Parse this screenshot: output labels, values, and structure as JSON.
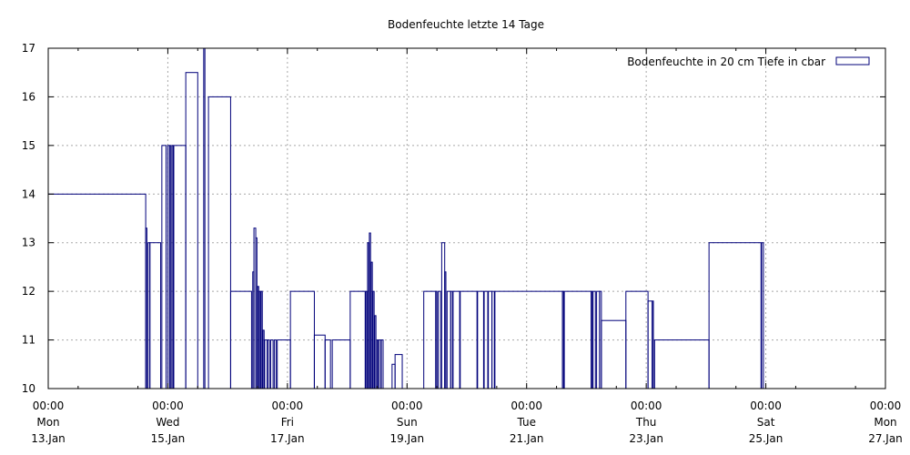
{
  "chart_data": {
    "type": "bar",
    "title": "Bodenfeuchte letzte 14 Tage",
    "xlabel": "",
    "ylabel": "",
    "ylim": [
      10,
      17
    ],
    "yticks": [
      "10",
      "11",
      "12",
      "13",
      "14",
      "15",
      "16",
      "17"
    ],
    "xlim_days": [
      0,
      14
    ],
    "xticks": [
      {
        "day": 0,
        "time": "00:00",
        "weekday": "Mon",
        "date": "13.Jan"
      },
      {
        "day": 2,
        "time": "00:00",
        "weekday": "Wed",
        "date": "15.Jan"
      },
      {
        "day": 4,
        "time": "00:00",
        "weekday": "Fri",
        "date": "17.Jan"
      },
      {
        "day": 6,
        "time": "00:00",
        "weekday": "Sun",
        "date": "19.Jan"
      },
      {
        "day": 8,
        "time": "00:00",
        "weekday": "Tue",
        "date": "21.Jan"
      },
      {
        "day": 10,
        "time": "00:00",
        "weekday": "Thu",
        "date": "23.Jan"
      },
      {
        "day": 12,
        "time": "00:00",
        "weekday": "Sat",
        "date": "25.Jan"
      },
      {
        "day": 14,
        "time": "00:00",
        "weekday": "Mon",
        "date": "27.Jan"
      }
    ],
    "grid": true,
    "legend": "top-right",
    "series": [
      {
        "name": "Bodenfeuchte in 20 cm Tiefe in cbar",
        "color": "#00007a",
        "bars": [
          [
            0.0,
            1.63,
            14.0
          ],
          [
            1.63,
            1.65,
            13.3
          ],
          [
            1.67,
            1.7,
            13.0
          ],
          [
            1.7,
            1.88,
            13.0
          ],
          [
            1.9,
            1.97,
            15.0
          ],
          [
            2.0,
            2.03,
            15.0
          ],
          [
            2.03,
            2.05,
            15.0
          ],
          [
            2.07,
            2.09,
            15.0
          ],
          [
            2.1,
            2.3,
            15.0
          ],
          [
            2.3,
            2.5,
            16.5
          ],
          [
            2.6,
            2.62,
            17.0
          ],
          [
            2.68,
            3.05,
            16.0
          ],
          [
            3.05,
            3.4,
            12.0
          ],
          [
            3.42,
            3.44,
            12.4
          ],
          [
            3.44,
            3.47,
            13.3
          ],
          [
            3.47,
            3.49,
            13.1
          ],
          [
            3.5,
            3.52,
            12.1
          ],
          [
            3.53,
            3.55,
            12.0
          ],
          [
            3.56,
            3.58,
            12.0
          ],
          [
            3.59,
            3.61,
            11.2
          ],
          [
            3.62,
            3.66,
            11.0
          ],
          [
            3.67,
            3.7,
            11.0
          ],
          [
            3.72,
            3.76,
            11.0
          ],
          [
            3.78,
            3.81,
            11.0
          ],
          [
            3.83,
            4.05,
            11.0
          ],
          [
            4.05,
            4.45,
            12.0
          ],
          [
            4.45,
            4.63,
            11.1
          ],
          [
            4.63,
            4.72,
            11.0
          ],
          [
            4.75,
            5.05,
            11.0
          ],
          [
            5.05,
            5.3,
            12.0
          ],
          [
            5.31,
            5.33,
            12.0
          ],
          [
            5.34,
            5.36,
            13.0
          ],
          [
            5.37,
            5.39,
            13.2
          ],
          [
            5.4,
            5.42,
            12.6
          ],
          [
            5.43,
            5.45,
            12.0
          ],
          [
            5.46,
            5.48,
            11.5
          ],
          [
            5.5,
            5.52,
            11.0
          ],
          [
            5.53,
            5.56,
            11.0
          ],
          [
            5.57,
            5.6,
            11.0
          ],
          [
            5.75,
            5.8,
            10.5
          ],
          [
            5.8,
            5.92,
            10.7
          ],
          [
            6.28,
            6.48,
            12.0
          ],
          [
            6.48,
            6.5,
            12.0
          ],
          [
            6.52,
            6.56,
            12.0
          ],
          [
            6.58,
            6.63,
            13.0
          ],
          [
            6.63,
            6.65,
            12.4
          ],
          [
            6.67,
            6.73,
            12.0
          ],
          [
            6.73,
            6.76,
            12.0
          ],
          [
            6.77,
            6.88,
            12.0
          ],
          [
            6.89,
            7.17,
            12.0
          ],
          [
            7.18,
            7.28,
            12.0
          ],
          [
            7.29,
            7.35,
            12.0
          ],
          [
            7.36,
            7.42,
            12.0
          ],
          [
            7.42,
            7.46,
            12.0
          ],
          [
            7.47,
            8.6,
            12.0
          ],
          [
            8.6,
            8.62,
            12.0
          ],
          [
            8.63,
            9.08,
            12.0
          ],
          [
            9.08,
            9.1,
            12.0
          ],
          [
            9.11,
            9.15,
            12.0
          ],
          [
            9.17,
            9.22,
            12.0
          ],
          [
            9.22,
            9.25,
            12.0
          ],
          [
            9.25,
            9.66,
            11.4
          ],
          [
            9.66,
            10.03,
            12.0
          ],
          [
            10.03,
            10.1,
            11.8
          ],
          [
            10.1,
            10.12,
            11.8
          ],
          [
            10.14,
            11.05,
            11.0
          ],
          [
            11.05,
            11.92,
            13.0
          ],
          [
            11.93,
            11.96,
            13.0
          ]
        ]
      }
    ]
  }
}
